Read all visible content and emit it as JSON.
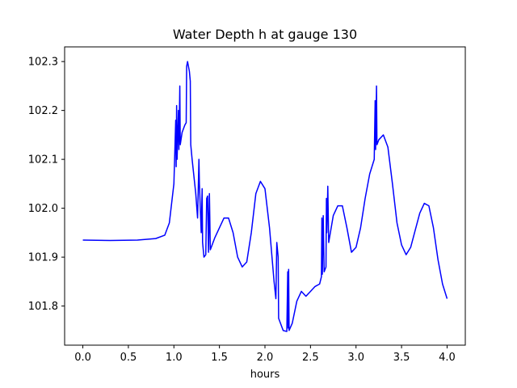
{
  "chart_data": {
    "type": "line",
    "title": "Water Depth h at gauge 130",
    "xlabel": "hours",
    "ylabel": "",
    "xlim": [
      -0.2,
      4.2
    ],
    "ylim": [
      101.72,
      102.33
    ],
    "x_ticks": [
      0.0,
      0.5,
      1.0,
      1.5,
      2.0,
      2.5,
      3.0,
      3.5,
      4.0
    ],
    "x_tick_labels": [
      "0.0",
      "0.5",
      "1.0",
      "1.5",
      "2.0",
      "2.5",
      "3.0",
      "3.5",
      "4.0"
    ],
    "y_ticks": [
      101.8,
      101.9,
      102.0,
      102.1,
      102.2,
      102.3
    ],
    "y_tick_labels": [
      "101.8",
      "101.9",
      "102.0",
      "102.1",
      "102.2",
      "102.3"
    ],
    "grid": false,
    "legend": "none",
    "series": [
      {
        "color": "#0000ff",
        "points": [
          [
            0.0,
            101.935
          ],
          [
            0.3,
            101.934
          ],
          [
            0.6,
            101.935
          ],
          [
            0.8,
            101.938
          ],
          [
            0.9,
            101.945
          ],
          [
            0.95,
            101.97
          ],
          [
            1.0,
            102.05
          ],
          [
            1.02,
            102.18
          ],
          [
            1.025,
            102.085
          ],
          [
            1.03,
            102.21
          ],
          [
            1.035,
            102.1
          ],
          [
            1.05,
            102.2
          ],
          [
            1.055,
            102.12
          ],
          [
            1.065,
            102.25
          ],
          [
            1.07,
            102.13
          ],
          [
            1.09,
            102.155
          ],
          [
            1.12,
            102.17
          ],
          [
            1.135,
            102.175
          ],
          [
            1.14,
            102.29
          ],
          [
            1.15,
            102.3
          ],
          [
            1.17,
            102.28
          ],
          [
            1.18,
            102.26
          ],
          [
            1.185,
            102.13
          ],
          [
            1.2,
            102.1
          ],
          [
            1.24,
            102.03
          ],
          [
            1.26,
            101.98
          ],
          [
            1.275,
            102.1
          ],
          [
            1.28,
            102.05
          ],
          [
            1.3,
            101.95
          ],
          [
            1.31,
            102.04
          ],
          [
            1.315,
            101.93
          ],
          [
            1.33,
            101.9
          ],
          [
            1.35,
            101.905
          ],
          [
            1.36,
            102.02
          ],
          [
            1.37,
            102.025
          ],
          [
            1.38,
            101.91
          ],
          [
            1.39,
            102.03
          ],
          [
            1.4,
            101.915
          ],
          [
            1.45,
            101.94
          ],
          [
            1.5,
            101.96
          ],
          [
            1.55,
            101.98
          ],
          [
            1.6,
            101.98
          ],
          [
            1.65,
            101.95
          ],
          [
            1.7,
            101.9
          ],
          [
            1.75,
            101.88
          ],
          [
            1.8,
            101.89
          ],
          [
            1.85,
            101.95
          ],
          [
            1.9,
            102.03
          ],
          [
            1.95,
            102.055
          ],
          [
            2.0,
            102.04
          ],
          [
            2.05,
            101.96
          ],
          [
            2.1,
            101.85
          ],
          [
            2.12,
            101.815
          ],
          [
            2.13,
            101.93
          ],
          [
            2.145,
            101.9
          ],
          [
            2.15,
            101.775
          ],
          [
            2.2,
            101.75
          ],
          [
            2.24,
            101.748
          ],
          [
            2.25,
            101.87
          ],
          [
            2.255,
            101.755
          ],
          [
            2.26,
            101.875
          ],
          [
            2.265,
            101.75
          ],
          [
            2.3,
            101.765
          ],
          [
            2.35,
            101.81
          ],
          [
            2.4,
            101.83
          ],
          [
            2.45,
            101.82
          ],
          [
            2.5,
            101.83
          ],
          [
            2.55,
            101.84
          ],
          [
            2.6,
            101.845
          ],
          [
            2.62,
            101.86
          ],
          [
            2.625,
            101.98
          ],
          [
            2.63,
            101.865
          ],
          [
            2.64,
            101.985
          ],
          [
            2.65,
            101.87
          ],
          [
            2.67,
            101.88
          ],
          [
            2.675,
            102.02
          ],
          [
            2.68,
            101.95
          ],
          [
            2.69,
            102.045
          ],
          [
            2.7,
            101.93
          ],
          [
            2.75,
            101.985
          ],
          [
            2.8,
            102.005
          ],
          [
            2.85,
            102.005
          ],
          [
            2.9,
            101.96
          ],
          [
            2.95,
            101.91
          ],
          [
            3.0,
            101.92
          ],
          [
            3.05,
            101.96
          ],
          [
            3.1,
            102.02
          ],
          [
            3.15,
            102.07
          ],
          [
            3.2,
            102.1
          ],
          [
            3.21,
            102.22
          ],
          [
            3.215,
            102.12
          ],
          [
            3.225,
            102.25
          ],
          [
            3.23,
            102.13
          ],
          [
            3.25,
            102.14
          ],
          [
            3.3,
            102.15
          ],
          [
            3.35,
            102.125
          ],
          [
            3.4,
            102.05
          ],
          [
            3.45,
            101.97
          ],
          [
            3.5,
            101.925
          ],
          [
            3.55,
            101.905
          ],
          [
            3.6,
            101.92
          ],
          [
            3.65,
            101.955
          ],
          [
            3.7,
            101.99
          ],
          [
            3.75,
            102.01
          ],
          [
            3.8,
            102.005
          ],
          [
            3.85,
            101.96
          ],
          [
            3.9,
            101.895
          ],
          [
            3.95,
            101.845
          ],
          [
            4.0,
            101.815
          ]
        ]
      }
    ]
  }
}
